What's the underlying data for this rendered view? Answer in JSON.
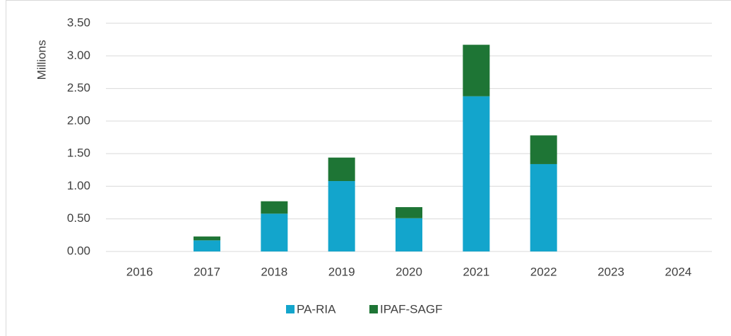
{
  "chart_data": {
    "type": "stacked_bar",
    "y_label": "Millions",
    "categories": [
      "2016",
      "2017",
      "2018",
      "2019",
      "2020",
      "2021",
      "2022",
      "2023",
      "2024"
    ],
    "series": [
      {
        "name": "PA-RIA",
        "color": "#13a5cc",
        "values": [
          0,
          0.17,
          0.58,
          1.08,
          0.51,
          2.38,
          1.34,
          0,
          0
        ]
      },
      {
        "name": "IPAF-SAGF",
        "color": "#1e7535",
        "values": [
          0,
          0.06,
          0.19,
          0.36,
          0.17,
          0.79,
          0.44,
          0,
          0
        ]
      }
    ],
    "ylim": [
      0,
      3.5
    ],
    "yticks": [
      {
        "value": 0,
        "label": "0.00"
      },
      {
        "value": 0.5,
        "label": "0.50"
      },
      {
        "value": 1,
        "label": "1.00"
      },
      {
        "value": 1.5,
        "label": "1.50"
      },
      {
        "value": 2,
        "label": "2.00"
      },
      {
        "value": 2.5,
        "label": "2.50"
      },
      {
        "value": 3,
        "label": "3.00"
      },
      {
        "value": 3.5,
        "label": "3.50"
      }
    ],
    "grid": true,
    "legend": "bottom"
  }
}
